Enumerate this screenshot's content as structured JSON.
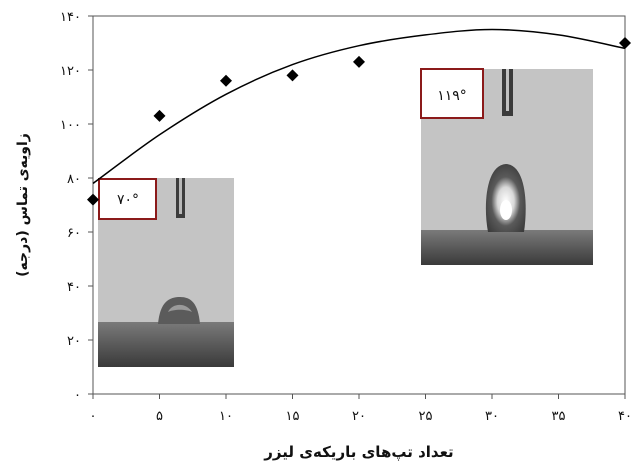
{
  "chart_data": {
    "type": "scatter",
    "title": "",
    "xlabel": "تعداد تپ‌های باریکه‌ی لیزر",
    "ylabel": "زاویه‌ی تماس (درجه)",
    "xlim": [
      0,
      40
    ],
    "ylim": [
      0,
      140
    ],
    "x_ticks": [
      0,
      5,
      10,
      15,
      20,
      25,
      30,
      35,
      40
    ],
    "y_ticks": [
      0,
      20,
      40,
      60,
      80,
      100,
      120,
      140
    ],
    "x_tick_labels": [
      "۰",
      "۵",
      "۱۰",
      "۱۵",
      "۲۰",
      "۲۵",
      "۳۰",
      "۳۵",
      "۴۰"
    ],
    "y_tick_labels": [
      "۰",
      "۲۰",
      "۴۰",
      "۶۰",
      "۸۰",
      "۱۰۰",
      "۱۲۰",
      "۱۴۰"
    ],
    "grid": false,
    "series": [
      {
        "marker": "diamond",
        "color": "#000000",
        "points": [
          {
            "x": 0,
            "y": 72
          },
          {
            "x": 5,
            "y": 103
          },
          {
            "x": 10,
            "y": 116
          },
          {
            "x": 15,
            "y": 118
          },
          {
            "x": 20,
            "y": 123
          },
          {
            "x": 40,
            "y": 130
          }
        ]
      }
    ],
    "trendline": {
      "type": "polynomial",
      "color": "#000000",
      "points": [
        {
          "x": 0,
          "y": 78
        },
        {
          "x": 5,
          "y": 96
        },
        {
          "x": 10,
          "y": 111
        },
        {
          "x": 15,
          "y": 122
        },
        {
          "x": 20,
          "y": 129
        },
        {
          "x": 25,
          "y": 133
        },
        {
          "x": 30,
          "y": 135
        },
        {
          "x": 35,
          "y": 133
        },
        {
          "x": 40,
          "y": 128
        }
      ]
    },
    "insets": [
      {
        "label": "۷۰°"
      },
      {
        "label": "۱۱۹°"
      }
    ]
  }
}
